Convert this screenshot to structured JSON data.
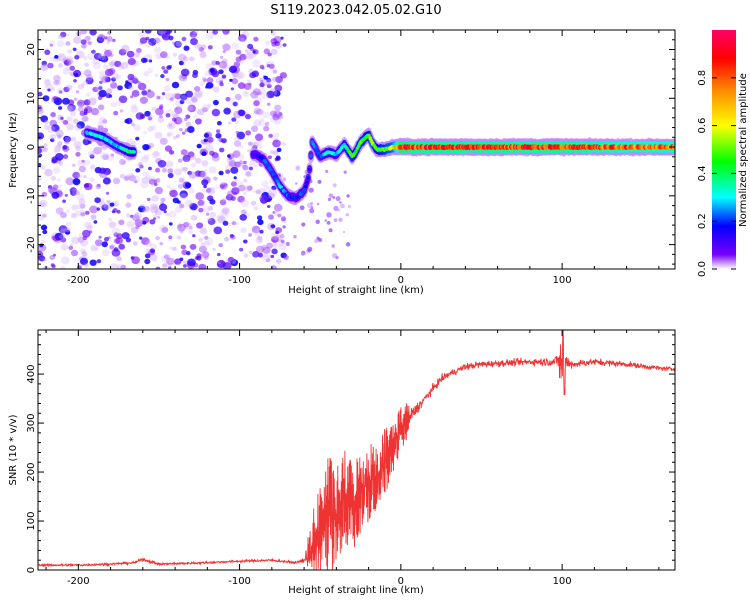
{
  "title": "S119.2023.042.05.02.G10",
  "chart_data": [
    {
      "type": "heatmap",
      "xlabel": "Height of straight line (km)",
      "ylabel": "Frequency (Hz)",
      "xlim": [
        -225,
        170
      ],
      "ylim": [
        -25,
        24
      ],
      "x_ticks": [
        -200,
        -100,
        0,
        100
      ],
      "x_tick_labels": [
        "-200",
        "-100",
        "0",
        "100"
      ],
      "y_ticks": [
        -20,
        -10,
        0,
        10,
        20
      ],
      "y_tick_labels": [
        "-20",
        "-10",
        "0",
        "10",
        "20"
      ],
      "colorbar": {
        "label": "Normalized spectral amplitude",
        "range": [
          0.0,
          1.0
        ],
        "ticks": [
          0.0,
          0.2,
          0.4,
          0.6,
          0.8
        ],
        "tick_labels": [
          "0.0",
          "0.2",
          "0.4",
          "0.6",
          "0.8"
        ],
        "colormap": [
          "#ffffff",
          "#7700ff",
          "#0000ff",
          "#00ffff",
          "#00ff00",
          "#ffff00",
          "#ff8800",
          "#ff0000",
          "#ff0066"
        ]
      },
      "noise_region_x": [
        -225,
        -72
      ],
      "ridge": {
        "x": [
          -195,
          -185,
          -175,
          -168,
          -90,
          -85,
          -80,
          -75,
          -70,
          -65,
          -60,
          -57,
          -55,
          -50,
          -45,
          -40,
          -35,
          -30,
          -28,
          -25,
          -20,
          -18,
          -15,
          -10,
          -5,
          0,
          10,
          30,
          60,
          100,
          140,
          170
        ],
        "frequency": [
          3,
          2,
          0,
          -1,
          -1.5,
          -2.5,
          -5,
          -8,
          -10,
          -10.5,
          -9,
          -6,
          1,
          -2,
          -1,
          -1.5,
          0.5,
          -2,
          -1,
          1,
          2.5,
          1,
          -0.5,
          -0.5,
          0,
          0,
          0,
          0,
          0,
          0,
          0,
          0
        ],
        "amplitude": [
          0.35,
          0.4,
          0.35,
          0.45,
          0.2,
          0.3,
          0.3,
          0.35,
          0.3,
          0.25,
          0.3,
          0.25,
          0.3,
          0.3,
          0.4,
          0.35,
          0.4,
          0.55,
          0.45,
          0.55,
          0.5,
          0.6,
          0.5,
          0.55,
          0.6,
          0.9,
          0.85,
          0.85,
          0.85,
          0.85,
          0.8,
          0.8
        ]
      }
    },
    {
      "type": "line",
      "xlabel": "Height of straight line (km)",
      "ylabel": "SNR (10 * v/v)",
      "xlim": [
        -225,
        170
      ],
      "ylim": [
        0,
        490
      ],
      "x_ticks": [
        -200,
        -100,
        0,
        100
      ],
      "x_tick_labels": [
        "-200",
        "-100",
        "0",
        "100"
      ],
      "y_ticks": [
        0,
        100,
        200,
        300,
        400
      ],
      "y_tick_labels": [
        "0",
        "100",
        "200",
        "300",
        "400"
      ],
      "series": [
        {
          "color": "#ee3333",
          "x": [
            -225,
            -200,
            -180,
            -165,
            -160,
            -150,
            -120,
            -100,
            -80,
            -65,
            -60,
            -55,
            -50,
            -45,
            -40,
            -35,
            -30,
            -25,
            -20,
            -15,
            -10,
            -5,
            0,
            5,
            10,
            15,
            20,
            25,
            30,
            40,
            50,
            60,
            80,
            95,
            100,
            105,
            120,
            140,
            160,
            170
          ],
          "y": [
            10,
            10,
            12,
            15,
            22,
            12,
            15,
            18,
            20,
            15,
            20,
            40,
            80,
            120,
            100,
            150,
            130,
            160,
            180,
            190,
            220,
            250,
            290,
            310,
            330,
            350,
            370,
            390,
            400,
            415,
            420,
            422,
            425,
            425,
            430,
            420,
            425,
            420,
            412,
            410
          ],
          "noise": [
            4,
            4,
            4,
            4,
            6,
            4,
            4,
            4,
            4,
            4,
            10,
            60,
            90,
            100,
            90,
            80,
            80,
            70,
            70,
            60,
            60,
            50,
            40,
            30,
            20,
            15,
            15,
            12,
            12,
            12,
            12,
            12,
            12,
            15,
            40,
            15,
            12,
            10,
            8,
            8
          ]
        }
      ]
    }
  ]
}
